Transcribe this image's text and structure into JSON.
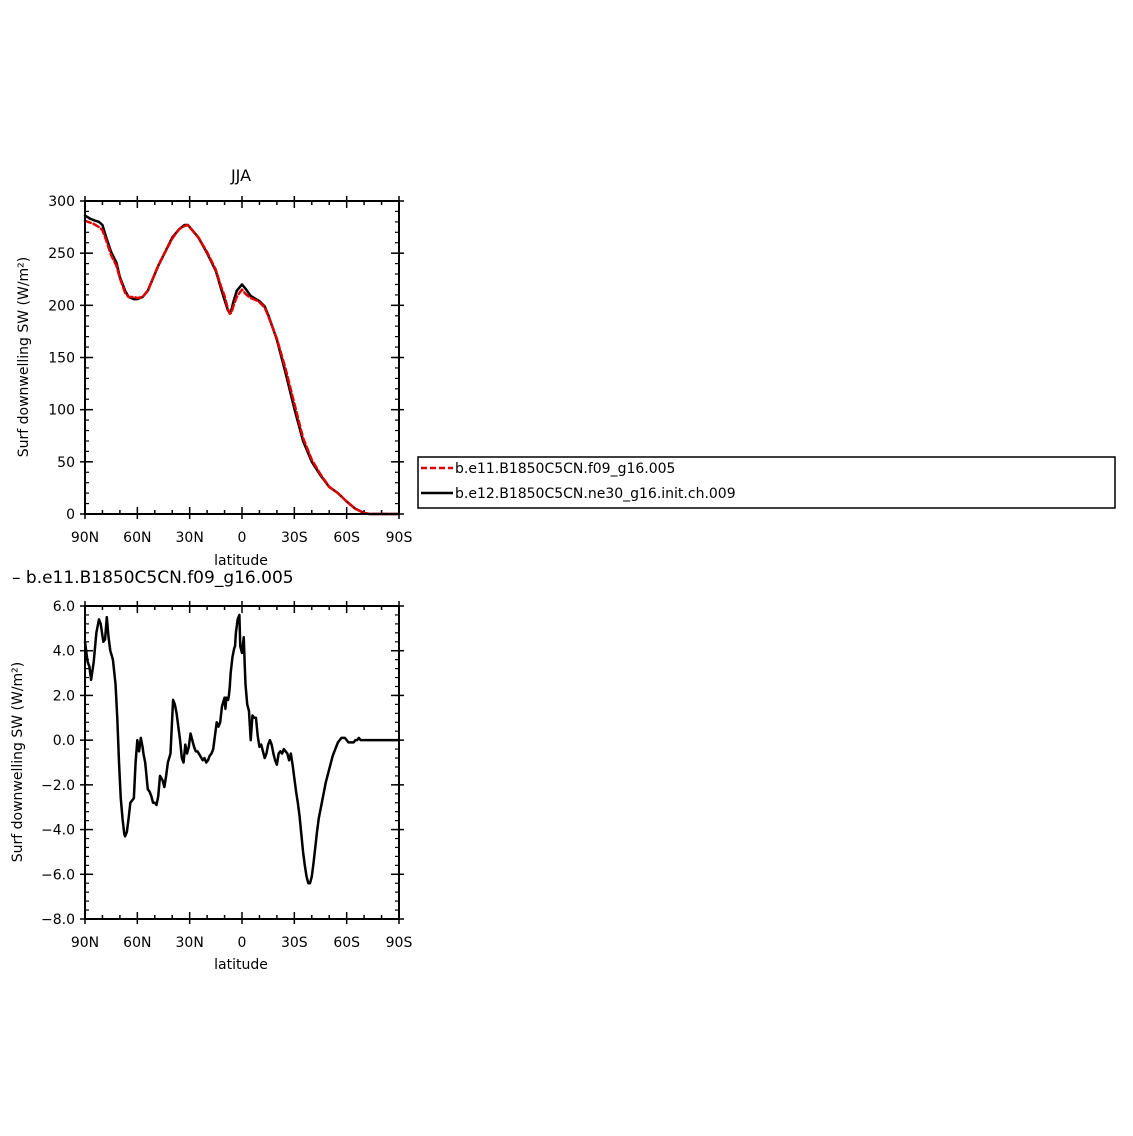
{
  "chart_data": [
    {
      "type": "line",
      "title": "JJA",
      "xlabel": "latitude",
      "ylabel": "Surf downwelling SW (W/m²)",
      "xlim": [
        90,
        -90
      ],
      "ylim": [
        0,
        300
      ],
      "x_ticks": [
        90,
        60,
        30,
        0,
        -30,
        -60,
        -90
      ],
      "x_tick_labels": [
        "90N",
        "60N",
        "30N",
        "0",
        "30S",
        "60S",
        "90S"
      ],
      "y_ticks": [
        0,
        50,
        100,
        150,
        200,
        250,
        300
      ],
      "y_tick_labels": [
        "0",
        "50",
        "100",
        "150",
        "200",
        "250",
        "300"
      ],
      "legend": {
        "placement": "right",
        "entries": [
          "b.e11.B1850C5CN.f09_g16.005",
          "b.e12.B1850C5CN.ne30_g16.init.ch.009"
        ]
      },
      "series": [
        {
          "name": "b.e11.B1850C5CN.f09_g16.005",
          "color": "#e00000",
          "dash": "dashed",
          "x": [
            90,
            85,
            82,
            80,
            78,
            75,
            72,
            70,
            67,
            65,
            62,
            60,
            57,
            54,
            51,
            48,
            45,
            40,
            36,
            33,
            31,
            29,
            27,
            25,
            20,
            15,
            12,
            10,
            8,
            7,
            6,
            5,
            3,
            1,
            0,
            -2,
            -5,
            -8,
            -10,
            -13,
            -15,
            -20,
            -25,
            -30,
            -35,
            -40,
            -45,
            -50,
            -55,
            -60,
            -65,
            -70,
            -73,
            -76,
            -80,
            -85,
            -90
          ],
          "y": [
            281,
            278,
            275,
            272,
            263,
            248,
            238,
            226,
            212,
            208,
            208,
            207,
            208,
            214,
            226,
            238,
            248,
            264,
            273,
            276,
            277,
            273,
            269,
            265,
            251,
            234,
            218,
            209,
            196,
            192,
            193,
            199,
            208,
            213,
            215,
            211,
            207,
            205,
            203,
            198,
            190,
            168,
            139,
            106,
            73,
            52,
            38,
            26,
            20,
            12,
            5,
            1,
            0,
            0,
            0,
            0,
            0
          ]
        },
        {
          "name": "b.e12.B1850C5CN.ne30_g16.init.ch.009",
          "color": "#000000",
          "dash": "solid",
          "x": [
            90,
            87,
            84,
            82,
            80,
            78,
            75,
            72,
            70,
            67,
            65,
            62,
            60,
            57,
            54,
            51,
            48,
            45,
            40,
            36,
            33,
            31,
            29,
            27,
            25,
            20,
            15,
            12,
            10,
            8,
            7,
            6,
            5,
            3,
            1,
            0,
            -2,
            -5,
            -8,
            -10,
            -13,
            -15,
            -20,
            -25,
            -30,
            -35,
            -40,
            -45,
            -50,
            -55,
            -60,
            -65,
            -70,
            -73,
            -76,
            -80,
            -85,
            -90
          ],
          "y": [
            286,
            283,
            281,
            280,
            277,
            266,
            251,
            241,
            227,
            214,
            208,
            206,
            206,
            208,
            214,
            226,
            238,
            248,
            265,
            273,
            277,
            277,
            273,
            269,
            265,
            250,
            233,
            216,
            205,
            195,
            193,
            196,
            203,
            214,
            218,
            220,
            216,
            209,
            206,
            204,
            199,
            191,
            167,
            135,
            101,
            70,
            50,
            37,
            26,
            20,
            12,
            5,
            1,
            0,
            0,
            0,
            0,
            0
          ]
        }
      ]
    },
    {
      "type": "line",
      "title": "– b.e11.B1850C5CN.f09_g16.005",
      "xlabel": "latitude",
      "ylabel": "Surf downwelling SW (W/m²)",
      "xlim": [
        90,
        -90
      ],
      "ylim": [
        -8,
        6
      ],
      "x_ticks": [
        90,
        60,
        30,
        0,
        -30,
        -60,
        -90
      ],
      "x_tick_labels": [
        "90N",
        "60N",
        "30N",
        "0",
        "30S",
        "60S",
        "90S"
      ],
      "y_ticks": [
        6,
        4,
        2,
        0,
        -2,
        -4,
        -6,
        -8
      ],
      "y_tick_labels": [
        "6.0",
        "4.0",
        "2.0",
        "0.0",
        "−2.0",
        "−4.0",
        "−6.0",
        "−8.0"
      ],
      "series": [
        {
          "color": "#000000",
          "x": [
            90,
            88.5,
            87.5,
            86.5,
            85,
            83.5,
            82,
            81,
            79.5,
            78.5,
            77.5,
            76.5,
            75.5,
            74,
            72.5,
            71.5,
            70.5,
            69.5,
            68.5,
            67.5,
            67,
            66,
            65,
            64,
            62,
            61,
            60,
            59,
            58,
            57,
            56.5,
            55.5,
            54,
            53,
            52,
            51,
            50,
            49,
            48,
            47,
            45.5,
            44.5,
            43.5,
            42.5,
            41,
            39.5,
            38.5,
            37.5,
            36.5,
            35.5,
            34.5,
            33.5,
            32.5,
            31.5,
            30.5,
            29.5,
            28.5,
            27.5,
            26.5,
            25.5,
            24,
            22.5,
            21.5,
            20.5,
            19.5,
            18.5,
            17.5,
            16.5,
            15.5,
            14.5,
            13.5,
            12.5,
            11.5,
            10,
            9.5,
            9,
            8,
            7.5,
            7,
            6.5,
            5.5,
            4.5,
            4,
            3.5,
            3,
            2.5,
            1.5,
            1,
            0,
            -1,
            -1.5,
            -2,
            -3,
            -4,
            -5,
            -6,
            -7,
            -8,
            -9,
            -10,
            -11,
            -12,
            -13,
            -14,
            -15,
            -16,
            -17,
            -18,
            -19,
            -20,
            -21,
            -22,
            -23,
            -24,
            -25,
            -26,
            -27,
            -28,
            -29,
            -30,
            -31,
            -32,
            -33,
            -34,
            -35,
            -36,
            -37,
            -38,
            -39,
            -40,
            -41,
            -42,
            -43,
            -44,
            -45,
            -46,
            -47,
            -48,
            -49,
            -50,
            -51,
            -52,
            -53,
            -54,
            -55,
            -56,
            -57,
            -58,
            -59,
            -60,
            -61,
            -62,
            -63,
            -64,
            -65,
            -66,
            -67,
            -68,
            -70,
            -73,
            -76,
            -80,
            -85,
            -90
          ],
          "y": [
            4.4,
            3.5,
            3.3,
            2.7,
            3.5,
            4.8,
            5.4,
            5.2,
            4.4,
            4.5,
            5.5,
            4.6,
            4.0,
            3.6,
            2.5,
            1.0,
            -1.0,
            -2.6,
            -3.5,
            -4.2,
            -4.3,
            -4.1,
            -3.5,
            -2.8,
            -2.6,
            -1.0,
            0.0,
            -0.5,
            0.1,
            -0.3,
            -0.6,
            -1.0,
            -2.2,
            -2.3,
            -2.5,
            -2.8,
            -2.8,
            -2.9,
            -2.5,
            -1.6,
            -1.8,
            -2.1,
            -1.6,
            -1.0,
            -0.6,
            1.8,
            1.6,
            1.2,
            0.6,
            0.0,
            -0.8,
            -1.0,
            -0.2,
            -0.6,
            -0.3,
            0.3,
            0.0,
            -0.3,
            -0.5,
            -0.5,
            -0.7,
            -0.9,
            -0.8,
            -1.0,
            -0.9,
            -0.7,
            -0.6,
            -0.4,
            0.2,
            0.8,
            0.6,
            0.8,
            1.5,
            1.9,
            1.4,
            1.9,
            1.8,
            2.0,
            2.4,
            3.0,
            3.7,
            4.1,
            4.2,
            4.8,
            5.1,
            5.4,
            5.6,
            4.2,
            3.9,
            4.6,
            3.5,
            2.5,
            1.6,
            1.3,
            0.0,
            1.1,
            1.0,
            1.0,
            0.2,
            -0.3,
            -0.2,
            -0.5,
            -0.8,
            -0.6,
            -0.2,
            0.0,
            -0.2,
            -0.6,
            -0.9,
            -1.1,
            -0.6,
            -0.5,
            -0.6,
            -0.4,
            -0.5,
            -0.6,
            -0.9,
            -0.6,
            -1.1,
            -1.7,
            -2.3,
            -2.8,
            -3.4,
            -4.2,
            -5.0,
            -5.6,
            -6.1,
            -6.4,
            -6.4,
            -6.1,
            -5.5,
            -4.8,
            -4.1,
            -3.5,
            -3.1,
            -2.7,
            -2.3,
            -1.9,
            -1.6,
            -1.3,
            -1.0,
            -0.7,
            -0.5,
            -0.3,
            -0.1,
            0.0,
            0.1,
            0.1,
            0.1,
            0.0,
            -0.1,
            -0.1,
            -0.1,
            -0.1,
            0.0,
            0.0,
            0.1,
            0.0,
            0.0,
            0.0,
            0.0,
            0.0,
            0.0,
            0.0
          ]
        }
      ]
    }
  ]
}
